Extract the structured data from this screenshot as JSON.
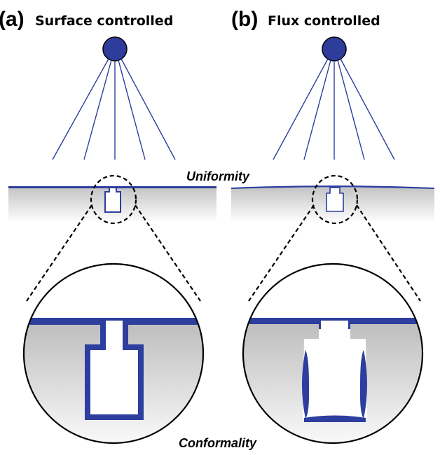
{
  "panels": [
    {
      "tag": "(a)",
      "title": "Surface controlled"
    },
    {
      "tag": "(b)",
      "title": "Flux controlled"
    }
  ],
  "annotations": {
    "uniformity": "Uniformity",
    "conformality": "Conformality"
  },
  "colors": {
    "film": "#2d3e9e",
    "source": "#2e3c9b",
    "substrate_top": "#c8c8c8",
    "substrate_bottom": "#ffffff",
    "outline": "#000000"
  }
}
